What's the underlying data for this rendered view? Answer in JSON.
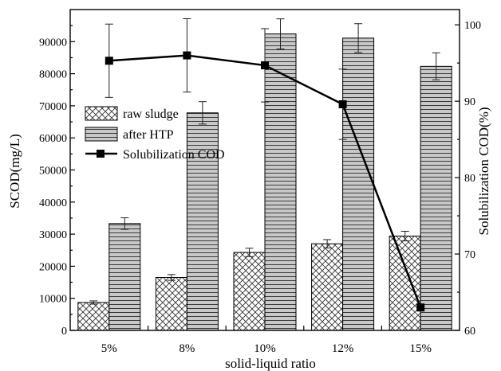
{
  "chart_data": {
    "type": "bar",
    "categories": [
      "5%",
      "8%",
      "10%",
      "12%",
      "15%"
    ],
    "xlabel": "solid-liquid ratio",
    "ylabel_left": "SCOD(mg/L)",
    "ylabel_right": "Solubilization COD(%)",
    "ylim_left": [
      0,
      100000
    ],
    "ylim_right": [
      60,
      102
    ],
    "yticks_left": [
      0,
      10000,
      20000,
      30000,
      40000,
      50000,
      60000,
      70000,
      80000,
      90000
    ],
    "yticks_right": [
      60,
      70,
      80,
      90,
      100
    ],
    "grid": false,
    "legend_position": "upper-left",
    "series": [
      {
        "name": "raw sludge",
        "kind": "bar",
        "axis": "left",
        "pattern": "crosshatch",
        "values": [
          8700,
          16500,
          24300,
          27000,
          29400
        ],
        "errors": [
          500,
          900,
          1300,
          1300,
          1500
        ]
      },
      {
        "name": "after HTP",
        "kind": "bar",
        "axis": "left",
        "pattern": "horizontal-lines",
        "values": [
          33300,
          67800,
          92400,
          91100,
          82300
        ],
        "errors": [
          1800,
          3500,
          4700,
          4500,
          4200
        ]
      },
      {
        "name": "Solubilization COD",
        "kind": "line",
        "axis": "right",
        "marker": "square",
        "values": [
          95.3,
          96.0,
          94.7,
          89.6,
          63.0
        ],
        "errors": [
          4.8,
          4.8,
          4.8,
          4.6,
          0
        ]
      }
    ]
  }
}
